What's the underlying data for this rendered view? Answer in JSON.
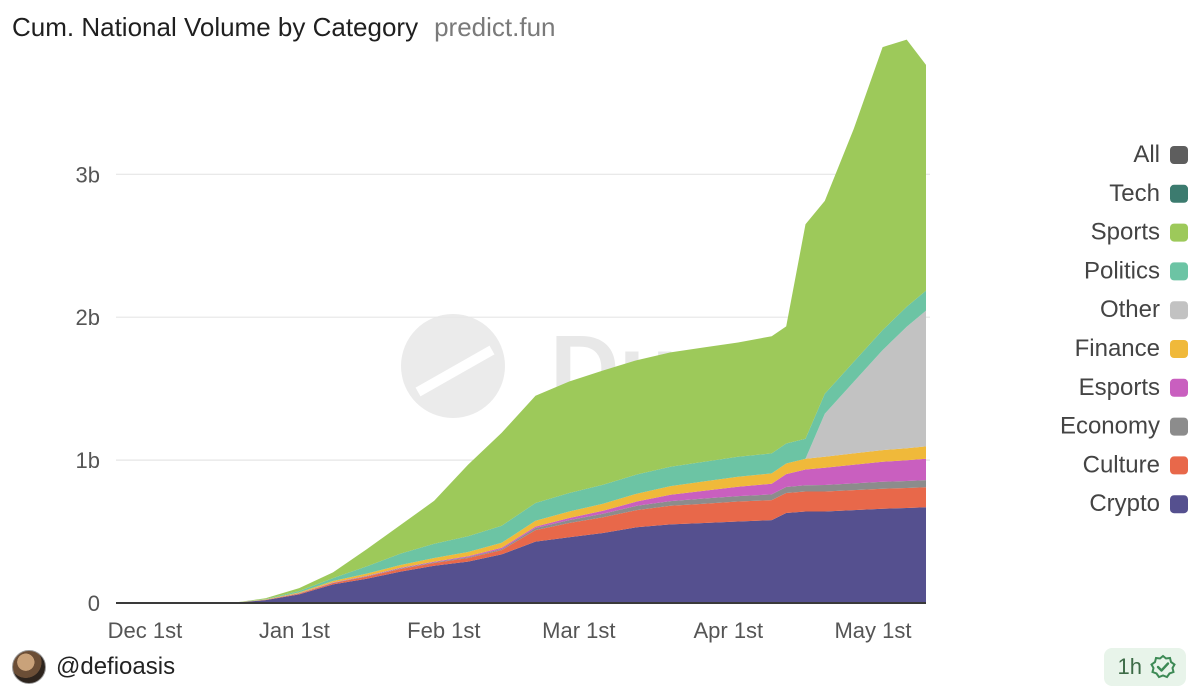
{
  "header": {
    "title": "Cum. National Volume by Category",
    "subtitle": "predict.fun"
  },
  "footer": {
    "handle": "@defioasis",
    "time_badge": "1h",
    "badge_icon": "check-badge-icon"
  },
  "watermark": "Dune",
  "chart_data": {
    "type": "area",
    "stacked": true,
    "x": [
      "2024-11-28",
      "2024-12-05",
      "2024-12-12",
      "2024-12-19",
      "2024-12-26",
      "2025-01-02",
      "2025-01-09",
      "2025-01-16",
      "2025-01-23",
      "2025-01-30",
      "2025-02-06",
      "2025-02-13",
      "2025-02-20",
      "2025-02-27",
      "2025-03-06",
      "2025-03-13",
      "2025-03-20",
      "2025-03-27",
      "2025-04-03",
      "2025-04-10",
      "2025-04-13",
      "2025-04-17",
      "2025-04-21",
      "2025-04-27",
      "2025-05-03",
      "2025-05-08",
      "2025-05-12"
    ],
    "x_ticks": [
      {
        "label": "Dec 1st",
        "date": "2024-12-01"
      },
      {
        "label": "Jan 1st",
        "date": "2025-01-01"
      },
      {
        "label": "Feb 1st",
        "date": "2025-02-01"
      },
      {
        "label": "Mar 1st",
        "date": "2025-03-01"
      },
      {
        "label": "Apr 1st",
        "date": "2025-04-01"
      },
      {
        "label": "May 1st",
        "date": "2025-05-01"
      }
    ],
    "y_ticks": [
      {
        "label": "0",
        "value": 0
      },
      {
        "label": "1b",
        "value": 1000000000
      },
      {
        "label": "2b",
        "value": 2000000000
      },
      {
        "label": "3b",
        "value": 3000000000
      }
    ],
    "ylim": [
      0,
      3800000000
    ],
    "grid": true,
    "legend_position": "right",
    "legend": [
      "All",
      "Tech",
      "Sports",
      "Politics",
      "Other",
      "Finance",
      "Esports",
      "Economy",
      "Culture",
      "Crypto"
    ],
    "series": [
      {
        "name": "Crypto",
        "color": "#55508f",
        "values": [
          0,
          0,
          0,
          0,
          20000000.0,
          60000000.0,
          130000000.0,
          170000000.0,
          220000000.0,
          260000000.0,
          290000000.0,
          340000000.0,
          430000000.0,
          460000000.0,
          490000000.0,
          530000000.0,
          550000000.0,
          560000000.0,
          570000000.0,
          580000000.0,
          630000000.0,
          640000000.0,
          640000000.0,
          650000000.0,
          660000000.0,
          665000000.0,
          670000000.0
        ]
      },
      {
        "name": "Culture",
        "color": "#e8684a",
        "values": [
          0,
          0,
          0,
          0,
          2000000.0,
          6000000.0,
          10000000.0,
          15000000.0,
          18000000.0,
          20000000.0,
          25000000.0,
          30000000.0,
          80000000.0,
          100000000.0,
          110000000.0,
          120000000.0,
          130000000.0,
          135000000.0,
          140000000.0,
          140000000.0,
          140000000.0,
          140000000.0,
          140000000.0,
          140000000.0,
          140000000.0,
          140000000.0,
          140000000.0
        ]
      },
      {
        "name": "Economy",
        "color": "#8c8c8c",
        "values": [
          0,
          0,
          0,
          0,
          1000000.0,
          2000000.0,
          2000000.0,
          3000000.0,
          4000000.0,
          5000000.0,
          6000000.0,
          8000000.0,
          15000000.0,
          20000000.0,
          25000000.0,
          30000000.0,
          33000000.0,
          36000000.0,
          38000000.0,
          40000000.0,
          42000000.0,
          44000000.0,
          46000000.0,
          47000000.0,
          48000000.0,
          49000000.0,
          50000000.0
        ]
      },
      {
        "name": "Esports",
        "color": "#c95fbf",
        "values": [
          0,
          0,
          0,
          0,
          0,
          1000000.0,
          2000000.0,
          3000000.0,
          4000000.0,
          5000000.0,
          6000000.0,
          8000000.0,
          10000000.0,
          15000000.0,
          20000000.0,
          30000000.0,
          45000000.0,
          55000000.0,
          65000000.0,
          75000000.0,
          90000000.0,
          110000000.0,
          120000000.0,
          130000000.0,
          140000000.0,
          145000000.0,
          150000000.0
        ]
      },
      {
        "name": "Finance",
        "color": "#f0b93a",
        "values": [
          0,
          0,
          0,
          0,
          2000000.0,
          5000000.0,
          10000000.0,
          15000000.0,
          20000000.0,
          25000000.0,
          30000000.0,
          35000000.0,
          40000000.0,
          45000000.0,
          50000000.0,
          55000000.0,
          60000000.0,
          65000000.0,
          70000000.0,
          72000000.0,
          74000000.0,
          76000000.0,
          78000000.0,
          80000000.0,
          82000000.0,
          84000000.0,
          86000000.0
        ]
      },
      {
        "name": "Other",
        "color": "#c2c2c2",
        "values": [
          0,
          0,
          0,
          0,
          0,
          0,
          0,
          0,
          0,
          0,
          0,
          0,
          0,
          0,
          0,
          0,
          0,
          0,
          0,
          0,
          0,
          0,
          300000000.0,
          500000000.0,
          700000000.0,
          850000000.0,
          950000000.0
        ]
      },
      {
        "name": "Politics",
        "color": "#6cc4a4",
        "values": [
          0,
          0,
          0,
          0,
          3000000.0,
          10000000.0,
          20000000.0,
          50000000.0,
          80000000.0,
          100000000.0,
          110000000.0,
          120000000.0,
          125000000.0,
          130000000.0,
          132000000.0,
          134000000.0,
          136000000.0,
          138000000.0,
          140000000.0,
          140000000.0,
          140000000.0,
          140000000.0,
          140000000.0,
          140000000.0,
          140000000.0,
          140000000.0,
          140000000.0
        ]
      },
      {
        "name": "Sports",
        "color": "#9dc95a",
        "values": [
          0,
          0,
          0,
          0,
          5000000.0,
          20000000.0,
          40000000.0,
          120000000.0,
          200000000.0,
          300000000.0,
          500000000.0,
          650000000.0,
          750000000.0,
          780000000.0,
          800000000.0,
          800000000.0,
          800000000.0,
          800000000.0,
          800000000.0,
          820000000.0,
          820000000.0,
          1500000000.0,
          1350000000.0,
          1630000000.0,
          1980000000.0,
          1870000000.0,
          1580000000.0
        ]
      },
      {
        "name": "Tech",
        "color": "#3c7b6f",
        "values": [
          0,
          0,
          0,
          0,
          0,
          0,
          0,
          0,
          0,
          0,
          0,
          0,
          0,
          0,
          0,
          0,
          0,
          0,
          0,
          0,
          0,
          0,
          0,
          0,
          0,
          0,
          0
        ]
      },
      {
        "name": "All",
        "color": "#5e5e5e",
        "values": [
          0,
          0,
          0,
          0,
          0,
          0,
          0,
          0,
          0,
          0,
          0,
          0,
          0,
          0,
          0,
          0,
          0,
          0,
          0,
          0,
          0,
          0,
          0,
          0,
          0,
          0,
          0
        ]
      }
    ]
  }
}
